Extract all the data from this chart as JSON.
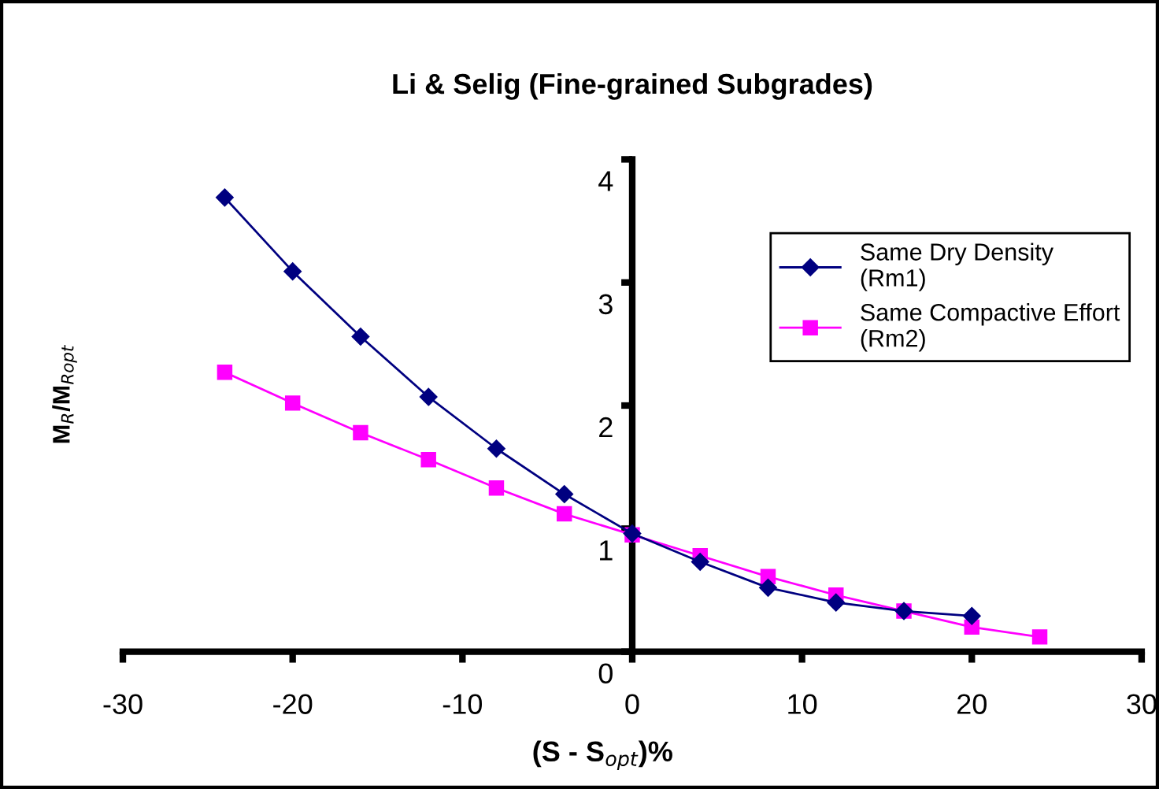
{
  "chart_data": {
    "type": "line",
    "title": "Li & Selig (Fine-grained Subgrades)",
    "xlabel": "(S - S$_{opt}$)%",
    "ylabel": "M$_{R}$/M$_{Ropt}$",
    "x": [
      -24,
      -20,
      -16,
      -12,
      -8,
      -4,
      0,
      4,
      8,
      12,
      16,
      20,
      24
    ],
    "series": [
      {
        "name": "Same Dry Density\n(Rm1)",
        "color": "#000080",
        "marker": "diamond",
        "values": [
          3.69,
          3.09,
          2.56,
          2.07,
          1.65,
          1.28,
          0.96,
          0.73,
          0.52,
          0.4,
          0.33,
          0.29,
          null
        ]
      },
      {
        "name": "Same Compactive Effort\n(Rm2)",
        "color": "#ff00ff",
        "marker": "square",
        "values": [
          2.27,
          2.02,
          1.78,
          1.56,
          1.33,
          1.12,
          0.95,
          0.78,
          0.61,
          0.46,
          0.33,
          0.2,
          0.12
        ]
      }
    ],
    "xlim": [
      -30,
      30
    ],
    "xticks": [
      -30,
      -20,
      -10,
      0,
      10,
      20,
      30
    ],
    "ylim": [
      0,
      4
    ],
    "yticks": [
      0,
      1,
      2,
      3,
      4
    ],
    "grid": false,
    "legend": "right",
    "line_style": "solid"
  }
}
